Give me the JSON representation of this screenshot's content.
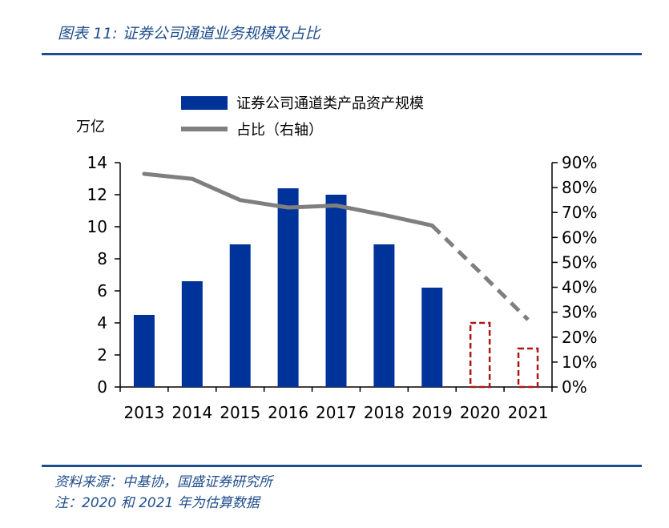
{
  "header": {
    "title": "图表 11:  证券公司通道业务规模及占比"
  },
  "footer": {
    "source": "资料来源：中基协，国盛证券研究所",
    "note": "注：2020 和 2021 年为估算数据"
  },
  "chart_data": {
    "type": "bar",
    "categories": [
      "2013",
      "2014",
      "2015",
      "2016",
      "2017",
      "2018",
      "2019",
      "2020",
      "2021"
    ],
    "series": [
      {
        "name": "证券公司通道类产品资产规模",
        "type": "bar",
        "axis": "left",
        "values": [
          4.5,
          6.6,
          8.9,
          12.4,
          12.0,
          8.9,
          6.2,
          4.0,
          2.4
        ],
        "estimated_from_index": 7,
        "color": "#003399",
        "estimate_color": "#b01515"
      },
      {
        "name": "占比（右轴）",
        "type": "line",
        "axis": "right",
        "values": [
          85.5,
          83.5,
          75.0,
          72.0,
          72.8,
          69.0,
          64.8,
          46.0,
          27.0
        ],
        "estimated_from_index": 6,
        "color": "#7f7f7f"
      }
    ],
    "y_left": {
      "unit": "万亿",
      "ylim": [
        0,
        14
      ],
      "ticks": [
        "0",
        "2",
        "4",
        "6",
        "8",
        "10",
        "12",
        "14"
      ]
    },
    "y_right": {
      "ylim": [
        0,
        90
      ],
      "ticks": [
        "0%",
        "10%",
        "20%",
        "30%",
        "40%",
        "50%",
        "60%",
        "70%",
        "80%",
        "90%"
      ]
    },
    "grid": false,
    "legend_position": "top"
  }
}
